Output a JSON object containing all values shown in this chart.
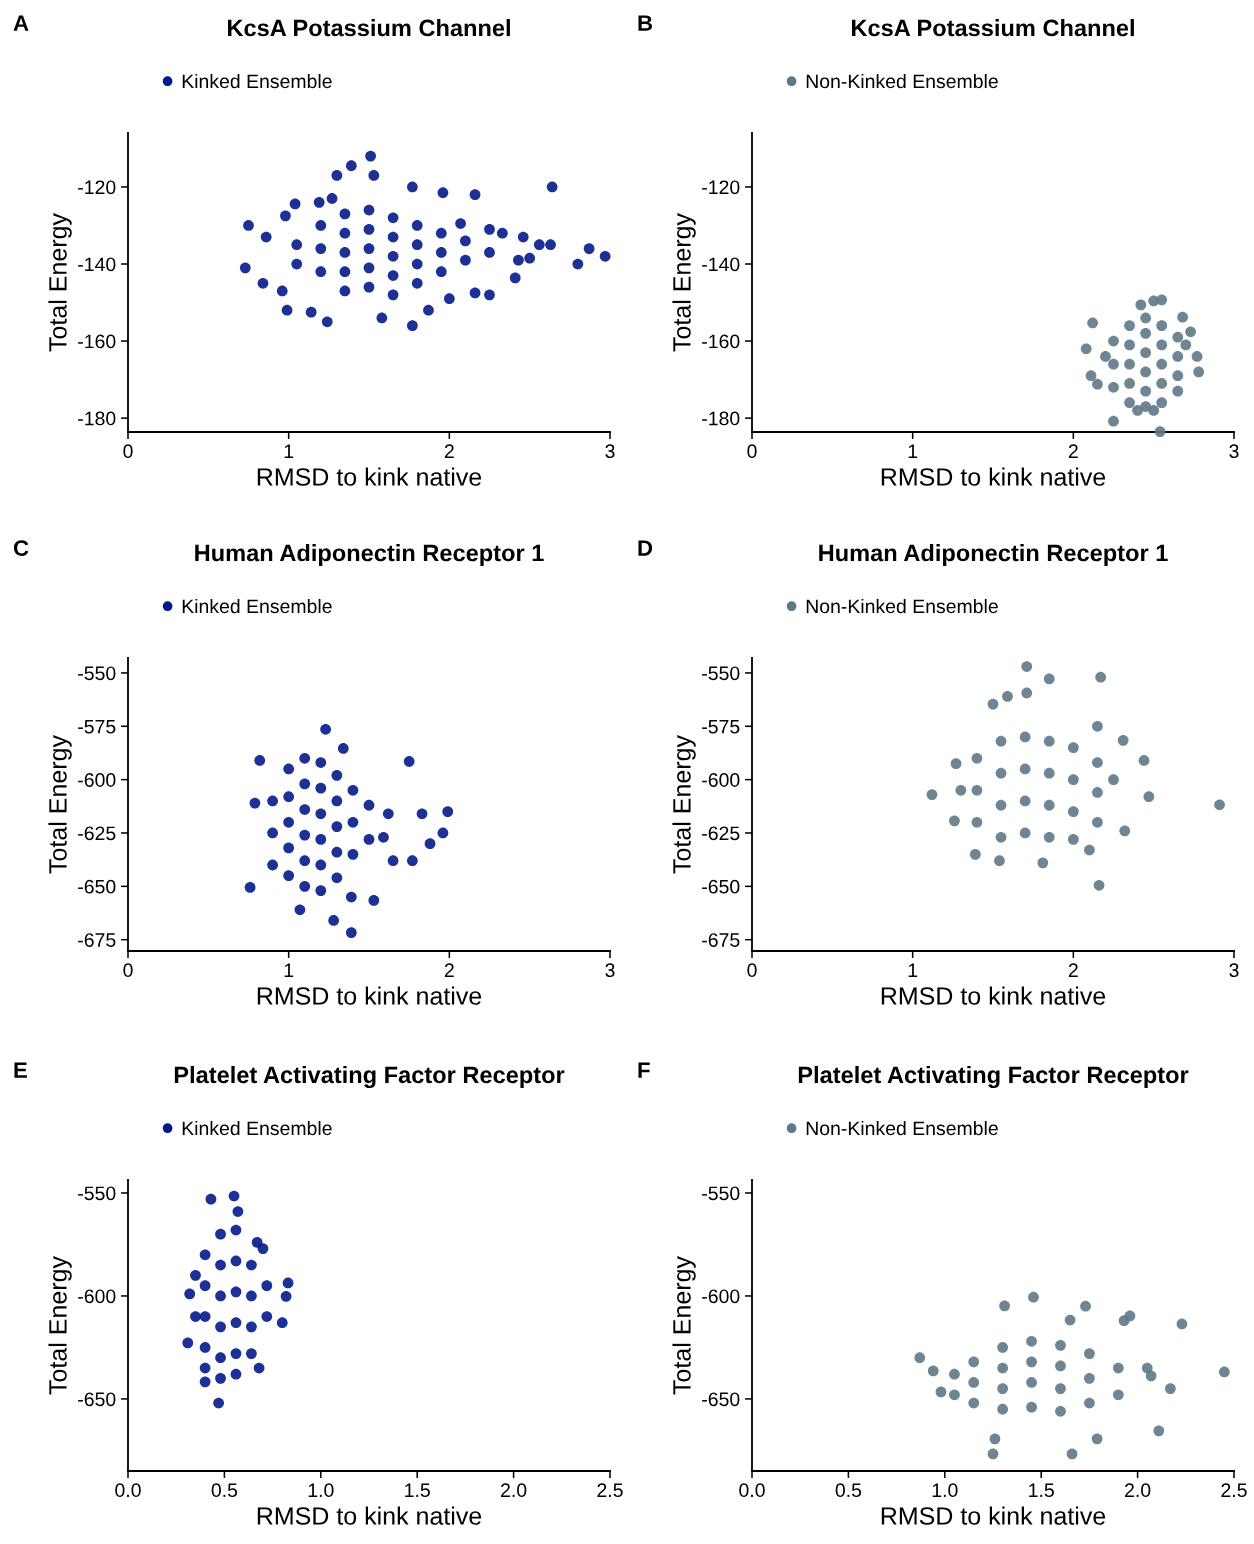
{
  "chart_data": [
    {
      "type": "scatter",
      "title": "KcsA Potassium Channel",
      "xlabel": "RMSD to kink native",
      "ylabel": "Total Energy",
      "annotations": [
        "A"
      ],
      "legend": "top",
      "marker": "circle",
      "grid": false,
      "xlim": [
        0,
        3
      ],
      "ylim": [
        -183.6,
        -106
      ],
      "xticks": [
        0,
        1,
        2,
        3
      ],
      "yticks": [
        -180,
        -160,
        -140,
        -120
      ],
      "series": [
        {
          "name": "Kinked Ensemble",
          "color": "#031a8a",
          "x": [
            1.51,
            1.39,
            1.3,
            1.53,
            1.77,
            2.64,
            2.16,
            1.96,
            0.75,
            0.73,
            2.87,
            2.97,
            2.8,
            2.63,
            2.56,
            2.46,
            2.33,
            2.43,
            2.5,
            2.41,
            2.25,
            2.16,
            2.0,
            1.87,
            1.77,
            1.58,
            1.24,
            1.14,
            0.99,
            0.96,
            0.84,
            0.86,
            0.98,
            1.04,
            1.19,
            1.27,
            2.07,
            2.25,
            1.2,
            1.2,
            1.2,
            1.35,
            1.35,
            1.35,
            1.35,
            1.35,
            1.5,
            1.5,
            1.5,
            1.5,
            1.5,
            1.65,
            1.65,
            1.65,
            1.65,
            1.65,
            1.8,
            1.8,
            1.8,
            1.8,
            1.95,
            1.95,
            1.95,
            2.1,
            2.1,
            1.05,
            1.05,
            2.25
          ],
          "values": [
            -112,
            -114.5,
            -117,
            -117,
            -120,
            -120,
            -122,
            -121.5,
            -130,
            -141,
            -136,
            -138,
            -140,
            -135,
            -135,
            -133,
            -132,
            -139,
            -138.5,
            -143.6,
            -148,
            -147.5,
            -149,
            -152,
            -156,
            -154,
            -155,
            -152.5,
            -152,
            -147,
            -145,
            -133,
            -127.5,
            -124.4,
            -124,
            -123,
            -129.5,
            -131,
            -130,
            -136,
            -142,
            -127,
            -132,
            -137,
            -142,
            -147,
            -126,
            -131,
            -136,
            -141,
            -146,
            -128,
            -133,
            -138,
            -143,
            -148,
            -130,
            -135,
            -140,
            -145,
            -132,
            -137,
            -142,
            -134,
            -139,
            -135,
            -140,
            -137
          ]
        }
      ]
    },
    {
      "type": "scatter",
      "title": "KcsA Potassium Channel",
      "xlabel": "RMSD to kink native",
      "ylabel": "Total Energy",
      "annotations": [
        "B"
      ],
      "legend": "top",
      "marker": "circle",
      "grid": false,
      "xlim": [
        0,
        3
      ],
      "ylim": [
        -183.6,
        -106
      ],
      "xticks": [
        0,
        1,
        2,
        3
      ],
      "yticks": [
        -180,
        -160,
        -140,
        -120
      ],
      "series": [
        {
          "name": "Non-Kinked Ensemble",
          "color": "#5e7888",
          "x": [
            2.25,
            2.54,
            2.42,
            2.5,
            2.55,
            2.12,
            2.68,
            2.73,
            2.11,
            2.15,
            2.78,
            2.77,
            2.08,
            2.25,
            2.25,
            2.25,
            2.35,
            2.35,
            2.35,
            2.35,
            2.35,
            2.45,
            2.45,
            2.45,
            2.45,
            2.45,
            2.45,
            2.55,
            2.55,
            2.55,
            2.55,
            2.55,
            2.65,
            2.65,
            2.65,
            2.65,
            2.2,
            2.7,
            2.4,
            2.5
          ],
          "values": [
            -180.8,
            -183.5,
            -150.6,
            -149.6,
            -149.3,
            -155.3,
            -153.8,
            -157.6,
            -169,
            -171.2,
            -168,
            -164,
            -162,
            -160,
            -166,
            -172,
            -156,
            -161,
            -166,
            -171,
            -176,
            -154,
            -158,
            -163,
            -168,
            -173,
            -177,
            -156,
            -161,
            -166,
            -171,
            -176,
            -159,
            -164,
            -169,
            -173,
            -164,
            -161,
            -178,
            -178
          ]
        }
      ]
    },
    {
      "type": "scatter",
      "title": "Human Adiponectin Receptor 1",
      "xlabel": "RMSD to kink native",
      "ylabel": "Total Energy",
      "annotations": [
        "C"
      ],
      "legend": "top",
      "marker": "circle",
      "grid": false,
      "xlim": [
        0,
        3
      ],
      "ylim": [
        -680.3,
        -543
      ],
      "xticks": [
        0,
        1,
        2,
        3
      ],
      "yticks": [
        -675,
        -650,
        -625,
        -600,
        -575,
        -550
      ],
      "series": [
        {
          "name": "Kinked Ensemble",
          "color": "#031a8a",
          "x": [
            1.23,
            1.75,
            1.99,
            1.83,
            1.96,
            1.88,
            1.77,
            1.39,
            1.28,
            0.76,
            0.82,
            0.79,
            1.53,
            1.39,
            1.07,
            1.62,
            1.59,
            1.65,
            1.34,
            0.9,
            0.9,
            0.9,
            1.0,
            1.0,
            1.0,
            1.0,
            1.0,
            1.1,
            1.1,
            1.1,
            1.1,
            1.1,
            1.1,
            1.2,
            1.2,
            1.2,
            1.2,
            1.2,
            1.2,
            1.3,
            1.3,
            1.3,
            1.3,
            1.3,
            1.4,
            1.4,
            1.4,
            1.5,
            1.5
          ],
          "values": [
            -576.4,
            -591.5,
            -615,
            -616,
            -625,
            -630,
            -638,
            -671.7,
            -666,
            -650.5,
            -591,
            -611,
            -656.6,
            -655,
            -661,
            -616,
            -627,
            -638,
            -585.4,
            -610,
            -625,
            -640,
            -595,
            -608,
            -620,
            -632,
            -645,
            -590,
            -602,
            -614,
            -626,
            -638,
            -650,
            -592,
            -604,
            -616,
            -628,
            -640,
            -652,
            -598,
            -610,
            -622,
            -634,
            -646,
            -605,
            -620,
            -635,
            -612,
            -628
          ]
        }
      ]
    },
    {
      "type": "scatter",
      "title": "Human Adiponectin Receptor 1",
      "xlabel": "RMSD to kink native",
      "ylabel": "Total Energy",
      "annotations": [
        "D"
      ],
      "legend": "top",
      "marker": "circle",
      "grid": false,
      "xlim": [
        0,
        3
      ],
      "ylim": [
        -680.3,
        -543
      ],
      "xticks": [
        0,
        1,
        2,
        3
      ],
      "yticks": [
        -675,
        -650,
        -625,
        -600,
        -575,
        -550
      ],
      "series": [
        {
          "name": "Non-Kinked Ensemble",
          "color": "#5e7888",
          "x": [
            1.71,
            1.85,
            2.17,
            1.71,
            1.5,
            1.59,
            2.91,
            1.12,
            2.16,
            2.47,
            2.44,
            2.31,
            2.15,
            1.39,
            1.54,
            1.81,
            2.1,
            2.32,
            1.27,
            1.26,
            1.4,
            1.4,
            1.4,
            1.55,
            1.55,
            1.55,
            1.55,
            1.7,
            1.7,
            1.7,
            1.7,
            1.85,
            1.85,
            1.85,
            1.85,
            2.0,
            2.0,
            2.0,
            2.0,
            2.15,
            2.15,
            2.15,
            1.3,
            2.25
          ],
          "values": [
            -547,
            -552.8,
            -552,
            -559.4,
            -564.6,
            -561,
            -611.8,
            -607,
            -649.5,
            -608,
            -591,
            -581.6,
            -575,
            -635,
            -638,
            -639,
            -633,
            -624,
            -592.5,
            -619.3,
            -590,
            -605,
            -620,
            -582,
            -597,
            -612,
            -627,
            -580,
            -595,
            -610,
            -625,
            -582,
            -597,
            -612,
            -627,
            -585,
            -600,
            -615,
            -628,
            -592,
            -606,
            -620,
            -605,
            -600
          ]
        }
      ]
    },
    {
      "type": "scatter",
      "title": "Platelet Activating Factor Receptor",
      "xlabel": "RMSD to kink native",
      "ylabel": "Total Energy",
      "annotations": [
        "E"
      ],
      "legend": "top",
      "marker": "circle",
      "grid": false,
      "xlim": [
        0,
        2.5
      ],
      "ylim": [
        -685,
        -543.7
      ],
      "xticks": [
        {
          "value": 0,
          "label": "0.0"
        },
        {
          "value": 0.5,
          "label": "0.5"
        },
        {
          "value": 1,
          "label": "1.0"
        },
        {
          "value": 1.5,
          "label": "1.5"
        },
        {
          "value": 2,
          "label": "2.0"
        },
        {
          "value": 2.5,
          "label": "2.5"
        }
      ],
      "yticks": [
        -650,
        -600,
        -550
      ],
      "series": [
        {
          "name": "Kinked Ensemble",
          "color": "#031a8a",
          "x": [
            0.55,
            0.43,
            0.47,
            0.83,
            0.82,
            0.8,
            0.32,
            0.31,
            0.4,
            0.68,
            0.57,
            0.67,
            0.7,
            0.4,
            0.4,
            0.4,
            0.4,
            0.4,
            0.48,
            0.48,
            0.48,
            0.48,
            0.48,
            0.48,
            0.56,
            0.56,
            0.56,
            0.56,
            0.56,
            0.56,
            0.64,
            0.64,
            0.64,
            0.64,
            0.72,
            0.72,
            0.35,
            0.35
          ],
          "values": [
            -551.5,
            -553,
            -652,
            -593.7,
            -600.2,
            -613,
            -599,
            -622.8,
            -641.7,
            -635,
            -559,
            -574,
            -577,
            -580,
            -595,
            -610,
            -625,
            -635,
            -570,
            -585,
            -600,
            -615,
            -630,
            -640,
            -568,
            -583,
            -598,
            -613,
            -628,
            -638,
            -585,
            -600,
            -615,
            -628,
            -595,
            -610,
            -590,
            -610
          ]
        }
      ]
    },
    {
      "type": "scatter",
      "title": "Platelet Activating Factor Receptor",
      "xlabel": "RMSD to kink native",
      "ylabel": "Total Energy",
      "annotations": [
        "F"
      ],
      "legend": "top",
      "marker": "circle",
      "grid": false,
      "xlim": [
        0,
        2.5
      ],
      "ylim": [
        -685,
        -543.7
      ],
      "xticks": [
        {
          "value": 0,
          "label": "0.0"
        },
        {
          "value": 0.5,
          "label": "0.5"
        },
        {
          "value": 1,
          "label": "1.0"
        },
        {
          "value": 1.5,
          "label": "1.5"
        },
        {
          "value": 2,
          "label": "2.0"
        },
        {
          "value": 2.5,
          "label": "2.5"
        }
      ],
      "yticks": [
        -650,
        -600,
        -550
      ],
      "series": [
        {
          "name": "Non-Kinked Ensemble",
          "color": "#5e7888",
          "x": [
            1.46,
            1.31,
            1.73,
            2.23,
            2.45,
            0.87,
            0.94,
            0.98,
            1.25,
            1.66,
            2.11,
            2.17,
            1.96,
            1.93,
            1.26,
            1.79,
            1.65,
            2.07,
            2.05,
            1.15,
            1.15,
            1.15,
            1.3,
            1.3,
            1.3,
            1.3,
            1.45,
            1.45,
            1.45,
            1.45,
            1.6,
            1.6,
            1.6,
            1.6,
            1.75,
            1.75,
            1.75,
            1.9,
            1.9,
            1.05,
            1.05
          ],
          "values": [
            -600.6,
            -604.8,
            -605,
            -613.6,
            -636.9,
            -630,
            -636.4,
            -646.6,
            -676.7,
            -676.7,
            -665.5,
            -645,
            -609.7,
            -612,
            -669.4,
            -669.4,
            -611.7,
            -638.8,
            -635,
            -632,
            -642,
            -652,
            -625,
            -635,
            -645,
            -655,
            -622,
            -632,
            -642,
            -654,
            -624,
            -634,
            -645,
            -656,
            -628,
            -640,
            -652,
            -635,
            -648,
            -638,
            -648
          ]
        }
      ]
    }
  ]
}
